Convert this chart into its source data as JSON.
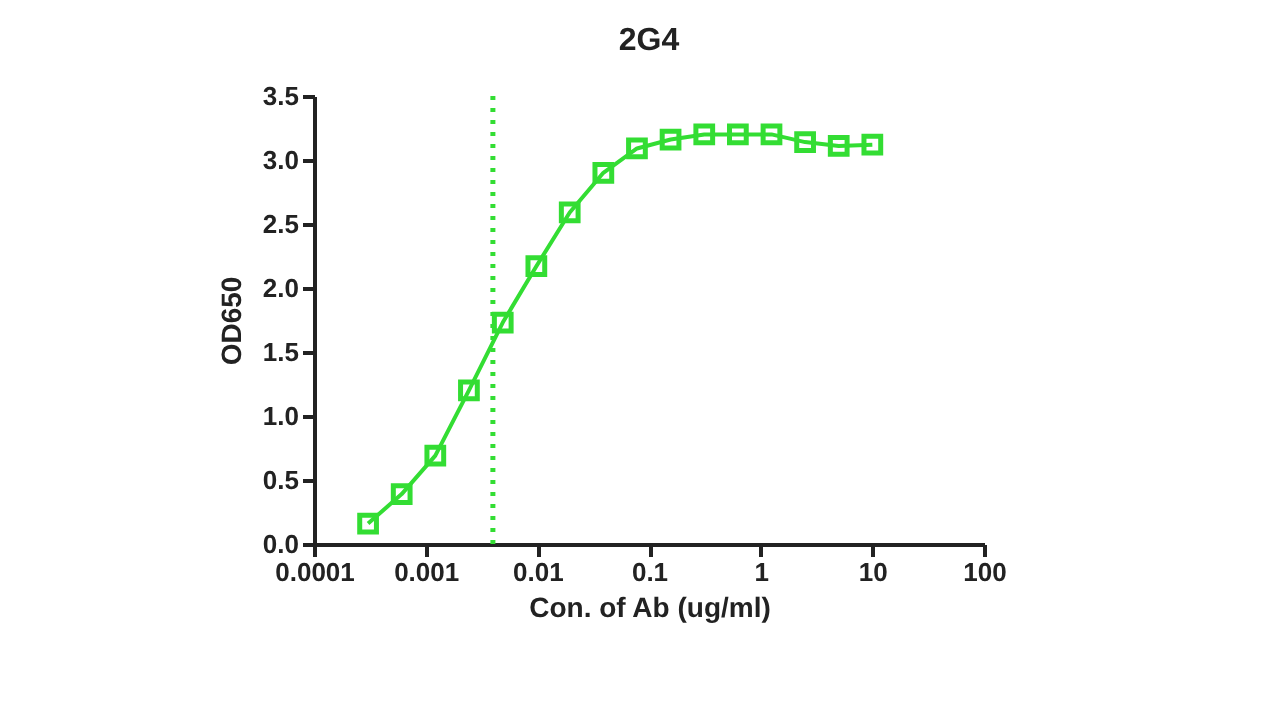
{
  "chart_data": {
    "type": "line",
    "title": "2G4",
    "xlabel": "Con. of Ab (ug/ml)",
    "ylabel": "OD650",
    "log": "x",
    "grid": false,
    "marker": "square",
    "line_style": "solid",
    "x": [
      0.000305,
      0.00061,
      0.00122,
      0.00244,
      0.0049,
      0.0098,
      0.0195,
      0.039,
      0.078,
      0.156,
      0.3125,
      0.625,
      1.25,
      2.5,
      5,
      10
    ],
    "series": [
      {
        "color": "#33dd33",
        "values": [
          0.16,
          0.39,
          0.69,
          1.2,
          1.73,
          2.17,
          2.59,
          2.9,
          3.09,
          3.16,
          3.2,
          3.2,
          3.2,
          3.14,
          3.11,
          3.12
        ]
      }
    ],
    "xlim": [
      0.0001,
      100
    ],
    "xticks": [
      0.0001,
      0.001,
      0.01,
      0.1,
      1,
      10,
      100
    ],
    "ylim": [
      0,
      3.5
    ],
    "yticks": [
      {
        "value": 0,
        "label": "0.0"
      },
      0.5,
      {
        "value": 1,
        "label": "1.0"
      },
      1.5,
      {
        "value": 2,
        "label": "2.0"
      },
      2.5,
      {
        "value": 3,
        "label": "3.0"
      },
      3.5
    ],
    "ref_lines": [
      {
        "axis": "x",
        "value": 0.004,
        "color": "#33dd33",
        "line_style": "dotted"
      }
    ]
  }
}
